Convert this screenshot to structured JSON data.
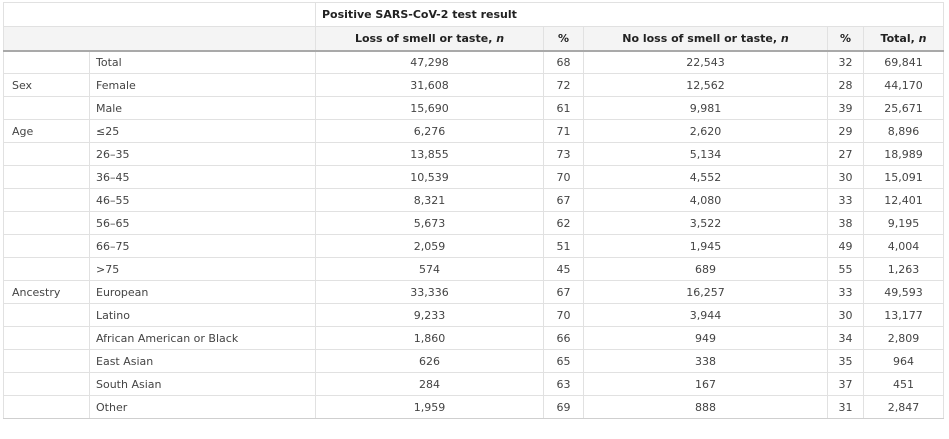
{
  "table": {
    "group_header": "Positive SARS-CoV-2 test result",
    "columns": {
      "loss": "Loss of smell or taste, ",
      "loss_pct": "%",
      "noloss": "No loss of smell or taste, ",
      "noloss_pct": "%",
      "total": "Total, ",
      "n_symbol": "n"
    },
    "rows": [
      {
        "group": "",
        "label": "Total",
        "loss": "47,298",
        "loss_pct": "68",
        "noloss": "22,543",
        "noloss_pct": "32",
        "total": "69,841"
      },
      {
        "group": "Sex",
        "label": "Female",
        "loss": "31,608",
        "loss_pct": "72",
        "noloss": "12,562",
        "noloss_pct": "28",
        "total": "44,170"
      },
      {
        "group": "",
        "label": "Male",
        "loss": "15,690",
        "loss_pct": "61",
        "noloss": "9,981",
        "noloss_pct": "39",
        "total": "25,671"
      },
      {
        "group": "Age",
        "label": "≤25",
        "loss": "6,276",
        "loss_pct": "71",
        "noloss": "2,620",
        "noloss_pct": "29",
        "total": "8,896"
      },
      {
        "group": "",
        "label": "26–35",
        "loss": "13,855",
        "loss_pct": "73",
        "noloss": "5,134",
        "noloss_pct": "27",
        "total": "18,989"
      },
      {
        "group": "",
        "label": "36–45",
        "loss": "10,539",
        "loss_pct": "70",
        "noloss": "4,552",
        "noloss_pct": "30",
        "total": "15,091"
      },
      {
        "group": "",
        "label": "46–55",
        "loss": "8,321",
        "loss_pct": "67",
        "noloss": "4,080",
        "noloss_pct": "33",
        "total": "12,401"
      },
      {
        "group": "",
        "label": "56–65",
        "loss": "5,673",
        "loss_pct": "62",
        "noloss": "3,522",
        "noloss_pct": "38",
        "total": "9,195"
      },
      {
        "group": "",
        "label": "66–75",
        "loss": "2,059",
        "loss_pct": "51",
        "noloss": "1,945",
        "noloss_pct": "49",
        "total": "4,004"
      },
      {
        "group": "",
        "label": ">75",
        "loss": "574",
        "loss_pct": "45",
        "noloss": "689",
        "noloss_pct": "55",
        "total": "1,263"
      },
      {
        "group": "Ancestry",
        "label": "European",
        "loss": "33,336",
        "loss_pct": "67",
        "noloss": "16,257",
        "noloss_pct": "33",
        "total": "49,593"
      },
      {
        "group": "",
        "label": "Latino",
        "loss": "9,233",
        "loss_pct": "70",
        "noloss": "3,944",
        "noloss_pct": "30",
        "total": "13,177"
      },
      {
        "group": "",
        "label": "African American or Black",
        "loss": "1,860",
        "loss_pct": "66",
        "noloss": "949",
        "noloss_pct": "34",
        "total": "2,809"
      },
      {
        "group": "",
        "label": "East Asian",
        "loss": "626",
        "loss_pct": "65",
        "noloss": "338",
        "noloss_pct": "35",
        "total": "964"
      },
      {
        "group": "",
        "label": "South Asian",
        "loss": "284",
        "loss_pct": "63",
        "noloss": "167",
        "noloss_pct": "37",
        "total": "451"
      },
      {
        "group": "",
        "label": "Other",
        "loss": "1,959",
        "loss_pct": "69",
        "noloss": "888",
        "noloss_pct": "31",
        "total": "2,847"
      }
    ]
  }
}
